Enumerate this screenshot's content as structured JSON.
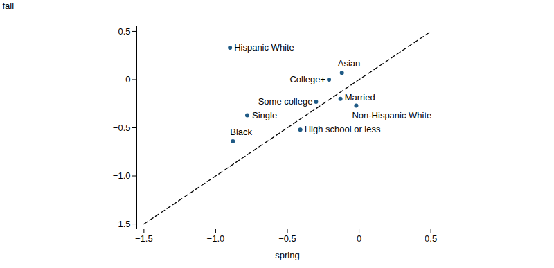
{
  "chart_data": {
    "type": "scatter",
    "x_label": "spring",
    "y_label": "fall",
    "labels": [
      "Hispanic White",
      "Asian",
      "College+",
      "Some college",
      "Married",
      "Non-Hispanic White",
      "Single",
      "High school or less",
      "Black"
    ],
    "x": [
      -0.9,
      -0.12,
      -0.21,
      -0.3,
      -0.13,
      -0.02,
      -0.78,
      -0.41,
      -0.88
    ],
    "y": [
      0.33,
      0.07,
      0.0,
      -0.23,
      -0.2,
      -0.27,
      -0.37,
      -0.52,
      -0.64
    ],
    "color": "#1f5a85",
    "marker": "circle",
    "reference_line": {
      "x": [
        -1.5,
        0.5
      ],
      "y": [
        -1.5,
        0.5
      ],
      "line_style": "dashed",
      "color": "#000000"
    },
    "xlim": [
      -1.55,
      0.55
    ],
    "ylim": [
      -1.55,
      0.55
    ],
    "xticks": [
      {
        "value": -1.5,
        "label": "−1.5"
      },
      {
        "value": -1,
        "label": "−1.0"
      },
      {
        "value": -0.5,
        "label": "−0.5"
      },
      0,
      0.5
    ],
    "yticks": [
      {
        "value": -1.5,
        "label": "−1.5"
      },
      {
        "value": -1,
        "label": "−1.0"
      },
      {
        "value": -0.5,
        "label": "−0.5"
      },
      0,
      0.5
    ],
    "grid": false
  }
}
